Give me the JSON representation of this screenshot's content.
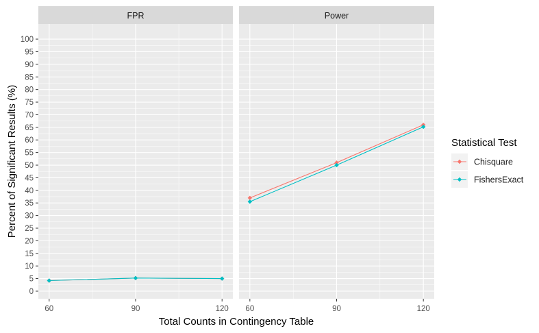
{
  "chart_data": {
    "type": "line",
    "facets": [
      "FPR",
      "Power"
    ],
    "x": [
      60,
      90,
      120
    ],
    "xlabel": "Total Counts in Contingency Table",
    "ylabel": "Percent of Significant Results (%)",
    "ylim": [
      -3,
      106
    ],
    "yticks": [
      0,
      5,
      10,
      15,
      20,
      25,
      30,
      35,
      40,
      45,
      50,
      55,
      60,
      65,
      70,
      75,
      80,
      85,
      90,
      95,
      100
    ],
    "xticks": [
      60,
      90,
      120
    ],
    "grid": true,
    "legend": {
      "title": "Statistical Test",
      "position": "right"
    },
    "series": [
      {
        "name": "Chisquare",
        "color": "#F8766D",
        "values": {
          "FPR": [
            4.2,
            5.2,
            5.0
          ],
          "Power": [
            37,
            51,
            66
          ]
        }
      },
      {
        "name": "FishersExact",
        "color": "#00BFC4",
        "values": {
          "FPR": [
            4.2,
            5.2,
            5.0
          ],
          "Power": [
            35.5,
            50,
            65.2
          ]
        }
      }
    ]
  }
}
